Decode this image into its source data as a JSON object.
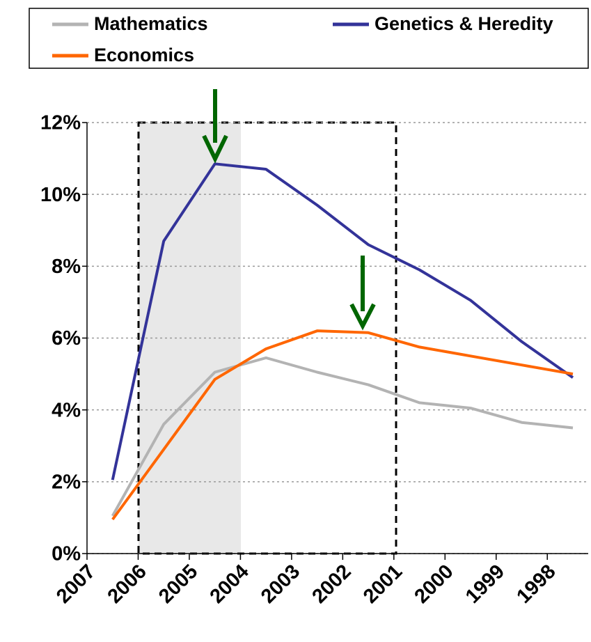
{
  "chart_data": {
    "type": "line",
    "x": [
      2006.5,
      2005.5,
      2004.5,
      2003.5,
      2002.5,
      2001.5,
      2000.5,
      1999.5,
      1998.5,
      1997.5
    ],
    "series": [
      {
        "name": "Mathematics",
        "color": "#b3b3b3",
        "values": [
          1.05,
          3.6,
          5.05,
          5.45,
          5.05,
          4.7,
          4.2,
          4.05,
          3.65,
          3.5
        ]
      },
      {
        "name": "Genetics & Heredity",
        "color": "#333399",
        "values": [
          2.05,
          8.7,
          10.85,
          10.7,
          9.7,
          8.6,
          7.9,
          7.05,
          5.9,
          4.9
        ]
      },
      {
        "name": "Economics",
        "color": "#ff6600",
        "values": [
          0.95,
          2.9,
          4.85,
          5.7,
          6.2,
          6.15,
          5.75,
          5.5,
          5.25,
          5.0
        ]
      }
    ],
    "xlim": [
      2007,
      1997.2
    ],
    "xticks": [
      2007,
      2006,
      2005,
      2004,
      2003,
      2002,
      2001,
      2000,
      1999,
      1998
    ],
    "ylim": [
      0,
      12
    ],
    "yticks": [
      {
        "value": 0,
        "label": "0%"
      },
      {
        "value": 2,
        "label": "2%"
      },
      {
        "value": 4,
        "label": "4%"
      },
      {
        "value": 6,
        "label": "6%"
      },
      {
        "value": 8,
        "label": "8%"
      },
      {
        "value": 10,
        "label": "10%"
      },
      {
        "value": 12,
        "label": "12%"
      }
    ],
    "grid": true,
    "legend": "top"
  }
}
